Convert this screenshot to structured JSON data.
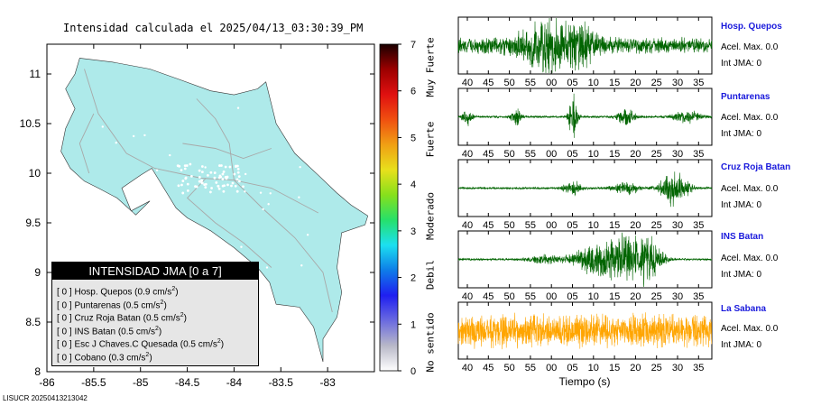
{
  "header": {
    "title": "Intensidad calculada el 2025/04/13_03:30:39_PM"
  },
  "footer": {
    "code": "LISUCR 20250413213042"
  },
  "legend": {
    "title": "INTENSIDAD JMA [0 a 7]",
    "rows": [
      {
        "tag": "[ 0 ]",
        "name": "Hosp. Quepos",
        "value": "0.9",
        "unit": "cm/s",
        "exp": "2"
      },
      {
        "tag": "[ 0 ]",
        "name": "Puntarenas",
        "value": "0.5",
        "unit": "cm/s",
        "exp": "2"
      },
      {
        "tag": "[ 0 ]",
        "name": "Cruz Roja Batan",
        "value": "0.5",
        "unit": "cm/s",
        "exp": "2"
      },
      {
        "tag": "[ 0 ]",
        "name": "INS Batan",
        "value": "0.5",
        "unit": "cm/s",
        "exp": "2"
      },
      {
        "tag": "[ 0 ]",
        "name": "Esc J Chaves.C Quesada",
        "value": "0.5",
        "unit": "cm/s",
        "exp": "2"
      },
      {
        "tag": "[ 0 ]",
        "name": "Cobano",
        "value": "0.3",
        "unit": "cm/s",
        "exp": "2"
      }
    ]
  },
  "colorbar": {
    "ticks": [
      "0",
      "1",
      "2",
      "3",
      "4",
      "5",
      "6",
      "7"
    ],
    "labels": [
      "No sentido",
      "Debil",
      "Moderado",
      "Fuerte",
      "Muy Fuerte"
    ],
    "colors": [
      "#ffffff",
      "#b8b8c8",
      "#6a6ae0",
      "#1f1ff0",
      "#0e7de8",
      "#1ce0f0",
      "#26e06a",
      "#86e01c",
      "#e8e01c",
      "#f0a014",
      "#f05010",
      "#e01010",
      "#9c0000",
      "#1a0000"
    ]
  },
  "stations": [
    {
      "name": "Hosp. Quepos",
      "acel_label": "Acel. Max. 0.0",
      "int_label": "Int JMA: 0",
      "color": "#006400"
    },
    {
      "name": "Puntarenas",
      "acel_label": "Acel. Max. 0.0",
      "int_label": "Int JMA: 0",
      "color": "#006400"
    },
    {
      "name": "Cruz Roja Batan",
      "acel_label": "Acel. Max. 0.0",
      "int_label": "Int JMA: 0",
      "color": "#006400"
    },
    {
      "name": "INS Batan",
      "acel_label": "Acel. Max. 0.0",
      "int_label": "Int JMA: 0",
      "color": "#006400"
    },
    {
      "name": "La Sabana",
      "acel_label": "Acel. Max. 0.0",
      "int_label": "Int JMA: 0",
      "color": "#ffa500"
    }
  ],
  "chart_data": [
    {
      "type": "map",
      "title": "Intensidad calculada el 2025/04/13_03:30:39_PM",
      "xlim": [
        -86,
        -82.5
      ],
      "ylim": [
        8,
        11.3
      ],
      "xticks": [
        "-86",
        "-85.5",
        "-85",
        "-84.5",
        "-84",
        "-83.5",
        "-83"
      ],
      "yticks": [
        "8",
        "8.5",
        "9",
        "9.5",
        "10",
        "10.5",
        "11"
      ],
      "land_color": "#aeeaea",
      "intensity_all_stations": 0
    },
    {
      "type": "line",
      "xlabel": "Tiempo (s)",
      "xticks": [
        "40",
        "45",
        "50",
        "55",
        "00",
        "05",
        "10",
        "15",
        "20",
        "25",
        "30",
        "35"
      ],
      "series": [
        {
          "name": "Hosp. Quepos",
          "base": 0.35,
          "events": [
            [
              20,
              0.9,
              6
            ],
            [
              28,
              0.6,
              4
            ]
          ]
        },
        {
          "name": "Puntarenas",
          "base": 0.05,
          "events": [
            [
              2,
              0.4,
              1
            ],
            [
              13,
              0.4,
              1
            ],
            [
              26,
              1.0,
              1
            ],
            [
              38,
              0.35,
              2
            ],
            [
              52,
              0.3,
              3
            ]
          ]
        },
        {
          "name": "Cruz Roja Batan",
          "base": 0.05,
          "events": [
            [
              26,
              0.3,
              2
            ],
            [
              38,
              0.25,
              3
            ],
            [
              49,
              0.8,
              3
            ]
          ]
        },
        {
          "name": "INS Batan",
          "base": 0.05,
          "events": [
            [
              30,
              0.5,
              4
            ],
            [
              37,
              1.0,
              5
            ],
            [
              43,
              0.9,
              3
            ],
            [
              20,
              0.2,
              4
            ]
          ]
        },
        {
          "name": "La Sabana",
          "base": 0.75,
          "events": []
        }
      ]
    }
  ]
}
